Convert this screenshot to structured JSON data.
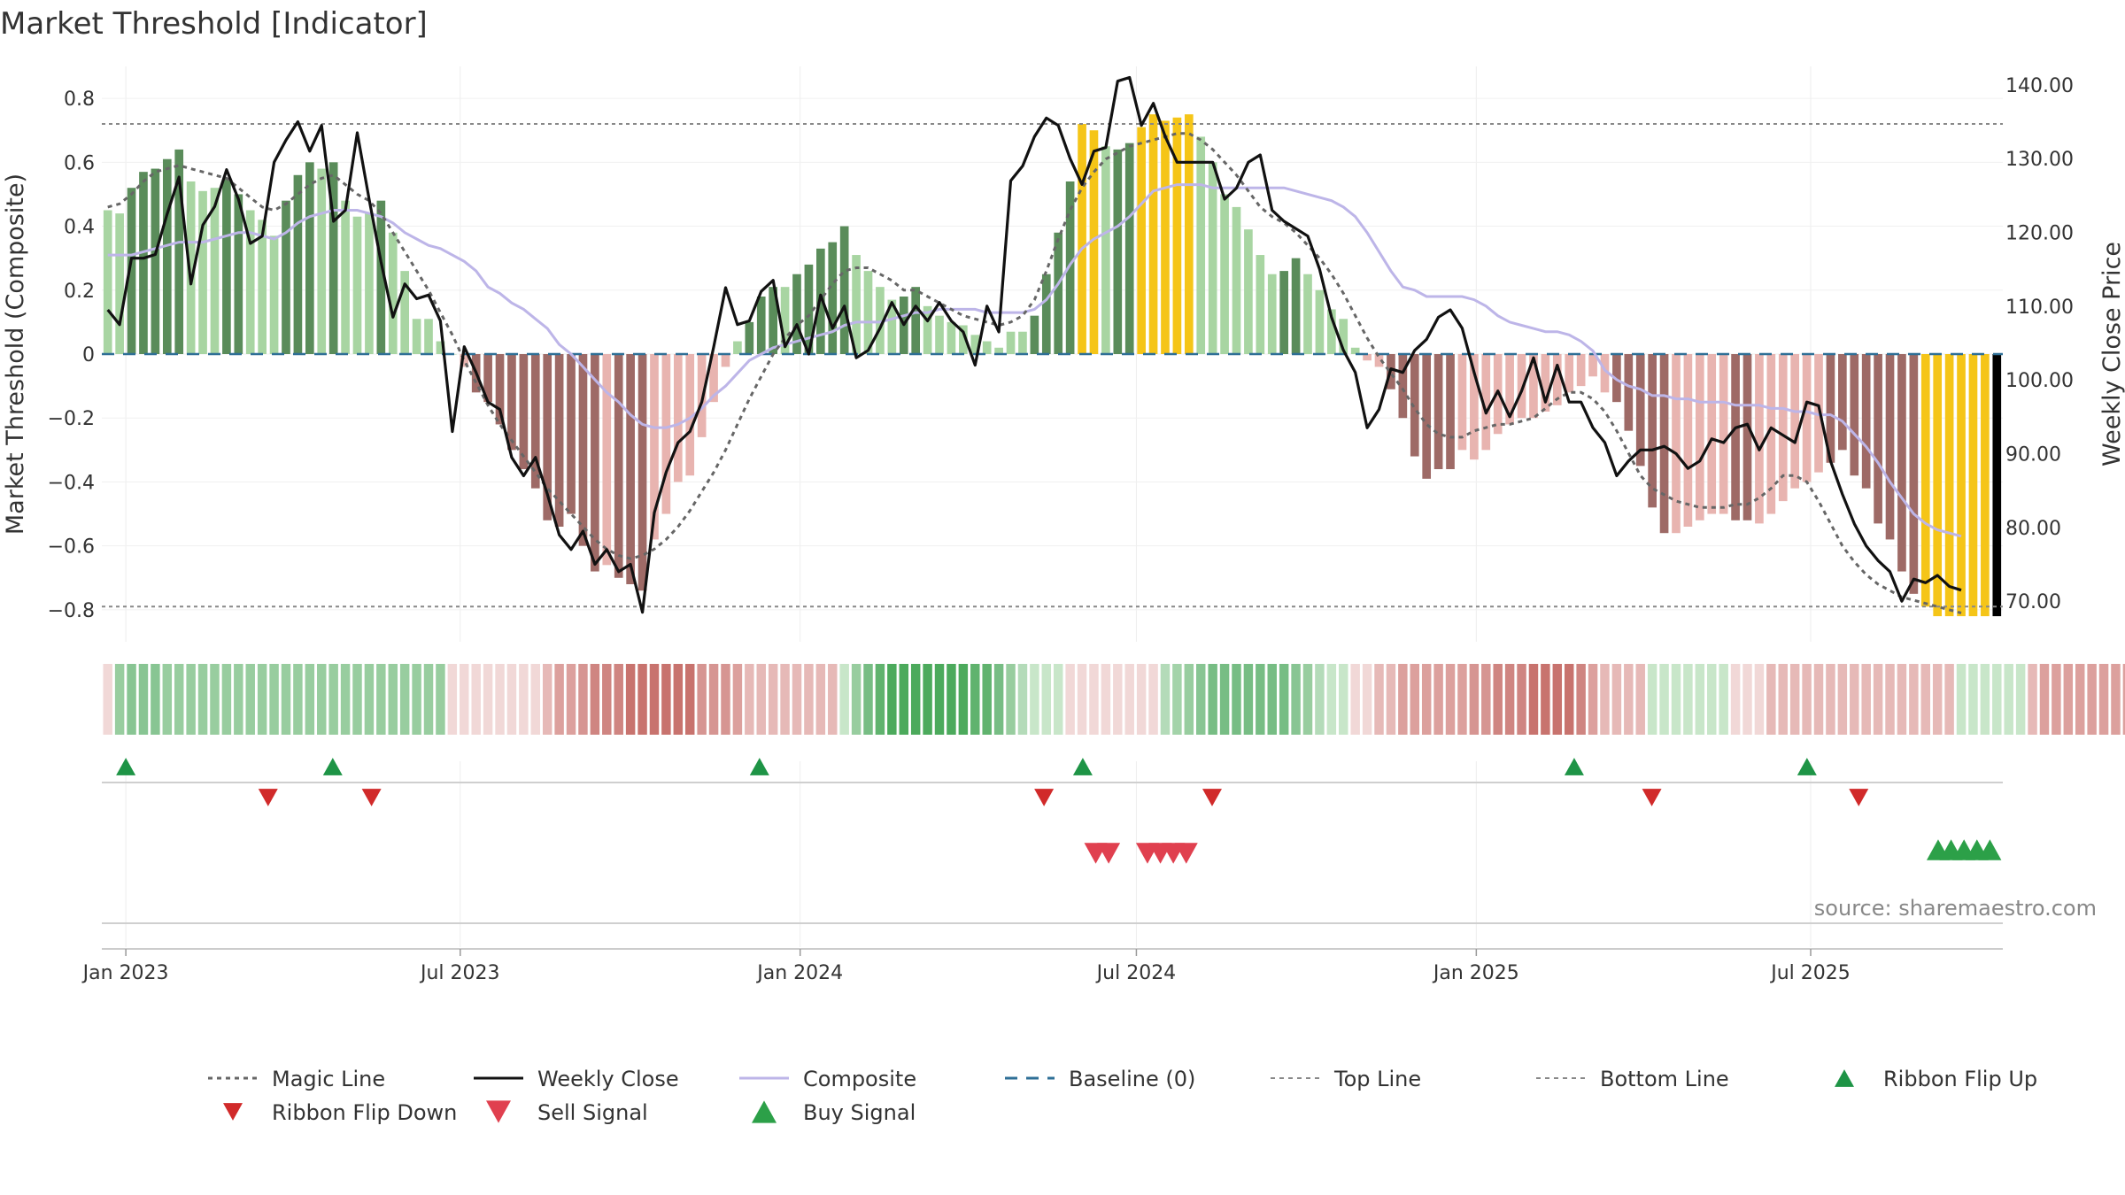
{
  "chart_data": {
    "type": "bar",
    "title": "Market Threshold [Indicator]",
    "ylabel": "Market Threshold (Composite)",
    "y2label": "Weekly Close Price",
    "ylim": [
      -0.9,
      0.9
    ],
    "y2lim": [
      64.5,
      142.5
    ],
    "y_ticks": [
      0.8,
      0.6,
      0.4,
      0.2,
      0,
      -0.2,
      -0.4,
      -0.6,
      -0.8
    ],
    "y_tick_labels": [
      "0.8",
      "0.6",
      "0.4",
      "0.2",
      "0",
      "−0.2",
      "−0.4",
      "−0.6",
      "−0.8"
    ],
    "y2_ticks": [
      140,
      130,
      120,
      110,
      100,
      90,
      80,
      70
    ],
    "y2_tick_labels": [
      "140.00",
      "130.00",
      "120.00",
      "110.00",
      "100.00",
      "90.00",
      "80.00",
      "70.00"
    ],
    "x_start": "2022-12-19",
    "x_end": "2025-10-13",
    "x_ticks": [
      "2023-01-01",
      "2023-07-01",
      "2024-01-01",
      "2024-07-01",
      "2025-01-01",
      "2025-07-01"
    ],
    "x_tick_labels": [
      "Jan 2023",
      "Jul 2023",
      "Jan 2024",
      "Jul 2024",
      "Jan 2025",
      "Jul 2025"
    ],
    "top_line": 0.72,
    "bottom_line": -0.79,
    "baseline": 0,
    "composite_bars": [
      0.45,
      0.44,
      0.52,
      0.57,
      0.58,
      0.61,
      0.64,
      0.54,
      0.51,
      0.52,
      0.55,
      0.5,
      0.45,
      0.42,
      0.37,
      0.48,
      0.56,
      0.6,
      0.58,
      0.6,
      0.48,
      0.43,
      0.44,
      0.48,
      0.38,
      0.26,
      0.11,
      0.11,
      0.04,
      0.0,
      -0.04,
      -0.12,
      -0.15,
      -0.22,
      -0.3,
      -0.36,
      -0.42,
      -0.52,
      -0.54,
      -0.5,
      -0.6,
      -0.68,
      -0.66,
      -0.7,
      -0.72,
      -0.74,
      -0.58,
      -0.5,
      -0.4,
      -0.38,
      -0.26,
      -0.15,
      -0.04,
      0.04,
      0.1,
      0.18,
      0.21,
      0.21,
      0.25,
      0.28,
      0.33,
      0.35,
      0.4,
      0.31,
      0.26,
      0.21,
      0.17,
      0.18,
      0.21,
      0.15,
      0.12,
      0.1,
      0.09,
      0.06,
      0.04,
      0.02,
      0.07,
      0.07,
      0.12,
      0.25,
      0.38,
      0.54,
      0.72,
      0.7,
      0.65,
      0.64,
      0.66,
      0.71,
      0.75,
      0.73,
      0.74,
      0.75,
      0.68,
      0.6,
      0.5,
      0.46,
      0.39,
      0.31,
      0.25,
      0.26,
      0.3,
      0.25,
      0.2,
      0.14,
      0.11,
      0.02,
      -0.02,
      -0.04,
      -0.11,
      -0.2,
      -0.32,
      -0.39,
      -0.36,
      -0.36,
      -0.3,
      -0.33,
      -0.3,
      -0.25,
      -0.22,
      -0.2,
      -0.2,
      -0.18,
      -0.16,
      -0.12,
      -0.1,
      -0.07,
      -0.12,
      -0.15,
      -0.24,
      -0.35,
      -0.48,
      -0.56,
      -0.56,
      -0.54,
      -0.52,
      -0.5,
      -0.5,
      -0.52,
      -0.52,
      -0.53,
      -0.5,
      -0.46,
      -0.42,
      -0.4,
      -0.37,
      -0.34,
      -0.3,
      -0.38,
      -0.42,
      -0.53,
      -0.58,
      -0.68,
      -0.75,
      -0.79,
      -0.82,
      -0.82,
      -0.82,
      -0.82,
      -0.82,
      -0.82
    ],
    "bar_colors": [
      "#a8d5a2",
      "#a8d5a2",
      "#5a8c5a",
      "#5a8c5a",
      "#5a8c5a",
      "#5a8c5a",
      "#5a8c5a",
      "#a8d5a2",
      "#a8d5a2",
      "#a8d5a2",
      "#5a8c5a",
      "#5a8c5a",
      "#a8d5a2",
      "#a8d5a2",
      "#a8d5a2",
      "#5a8c5a",
      "#5a8c5a",
      "#5a8c5a",
      "#a8d5a2",
      "#5a8c5a",
      "#a8d5a2",
      "#a8d5a2",
      "#a8d5a2",
      "#5a8c5a",
      "#a8d5a2",
      "#a8d5a2",
      "#a8d5a2",
      "#a8d5a2",
      "#a8d5a2",
      "#a8d5a2",
      "#e8b4b0",
      "#9e6a66",
      "#9e6a66",
      "#9e6a66",
      "#9e6a66",
      "#9e6a66",
      "#9e6a66",
      "#9e6a66",
      "#9e6a66",
      "#9e6a66",
      "#9e6a66",
      "#9e6a66",
      "#e8b4b0",
      "#9e6a66",
      "#9e6a66",
      "#9e6a66",
      "#e8b4b0",
      "#e8b4b0",
      "#e8b4b0",
      "#e8b4b0",
      "#e8b4b0",
      "#e8b4b0",
      "#e8b4b0",
      "#a8d5a2",
      "#5a8c5a",
      "#5a8c5a",
      "#5a8c5a",
      "#a8d5a2",
      "#5a8c5a",
      "#5a8c5a",
      "#5a8c5a",
      "#5a8c5a",
      "#5a8c5a",
      "#a8d5a2",
      "#a8d5a2",
      "#a8d5a2",
      "#a8d5a2",
      "#5a8c5a",
      "#5a8c5a",
      "#a8d5a2",
      "#a8d5a2",
      "#a8d5a2",
      "#a8d5a2",
      "#a8d5a2",
      "#a8d5a2",
      "#a8d5a2",
      "#a8d5a2",
      "#a8d5a2",
      "#5a8c5a",
      "#5a8c5a",
      "#5a8c5a",
      "#5a8c5a",
      "#f5c518",
      "#f5c518",
      "#a8d5a2",
      "#5a8c5a",
      "#5a8c5a",
      "#f5c518",
      "#f5c518",
      "#f5c518",
      "#f5c518",
      "#f5c518",
      "#a8d5a2",
      "#a8d5a2",
      "#a8d5a2",
      "#a8d5a2",
      "#a8d5a2",
      "#a8d5a2",
      "#a8d5a2",
      "#5a8c5a",
      "#5a8c5a",
      "#a8d5a2",
      "#a8d5a2",
      "#a8d5a2",
      "#a8d5a2",
      "#a8d5a2",
      "#e8b4b0",
      "#e8b4b0",
      "#9e6a66",
      "#9e6a66",
      "#9e6a66",
      "#9e6a66",
      "#9e6a66",
      "#9e6a66",
      "#e8b4b0",
      "#e8b4b0",
      "#e8b4b0",
      "#e8b4b0",
      "#e8b4b0",
      "#e8b4b0",
      "#e8b4b0",
      "#e8b4b0",
      "#e8b4b0",
      "#e8b4b0",
      "#e8b4b0",
      "#e8b4b0",
      "#e8b4b0",
      "#9e6a66",
      "#9e6a66",
      "#9e6a66",
      "#9e6a66",
      "#9e6a66",
      "#e8b4b0",
      "#e8b4b0",
      "#e8b4b0",
      "#e8b4b0",
      "#e8b4b0",
      "#9e6a66",
      "#9e6a66",
      "#e8b4b0",
      "#e8b4b0",
      "#e8b4b0",
      "#e8b4b0",
      "#e8b4b0",
      "#e8b4b0",
      "#9e6a66",
      "#9e6a66",
      "#9e6a66",
      "#9e6a66",
      "#9e6a66",
      "#9e6a66",
      "#9e6a66",
      "#9e6a66",
      "#f5c518",
      "#f5c518",
      "#f5c518",
      "#f5c518",
      "#f5c518",
      "#f5c518"
    ],
    "magic_line": [
      0.46,
      0.47,
      0.5,
      0.54,
      0.57,
      0.58,
      0.59,
      0.58,
      0.57,
      0.56,
      0.55,
      0.52,
      0.49,
      0.46,
      0.45,
      0.47,
      0.5,
      0.53,
      0.55,
      0.56,
      0.53,
      0.5,
      0.48,
      0.44,
      0.38,
      0.32,
      0.26,
      0.2,
      0.13,
      0.06,
      -0.02,
      -0.09,
      -0.16,
      -0.22,
      -0.27,
      -0.32,
      -0.37,
      -0.42,
      -0.46,
      -0.5,
      -0.54,
      -0.58,
      -0.61,
      -0.63,
      -0.64,
      -0.63,
      -0.61,
      -0.58,
      -0.54,
      -0.49,
      -0.43,
      -0.37,
      -0.3,
      -0.22,
      -0.14,
      -0.07,
      0.0,
      0.05,
      0.09,
      0.12,
      0.17,
      0.22,
      0.26,
      0.27,
      0.27,
      0.25,
      0.23,
      0.2,
      0.2,
      0.18,
      0.16,
      0.14,
      0.12,
      0.11,
      0.1,
      0.09,
      0.1,
      0.12,
      0.17,
      0.26,
      0.36,
      0.45,
      0.52,
      0.57,
      0.61,
      0.63,
      0.65,
      0.66,
      0.67,
      0.68,
      0.69,
      0.69,
      0.67,
      0.64,
      0.6,
      0.56,
      0.51,
      0.46,
      0.43,
      0.41,
      0.38,
      0.34,
      0.3,
      0.25,
      0.19,
      0.12,
      0.05,
      -0.01,
      -0.06,
      -0.11,
      -0.17,
      -0.22,
      -0.25,
      -0.26,
      -0.26,
      -0.24,
      -0.23,
      -0.22,
      -0.22,
      -0.21,
      -0.2,
      -0.17,
      -0.14,
      -0.12,
      -0.12,
      -0.14,
      -0.18,
      -0.24,
      -0.31,
      -0.38,
      -0.42,
      -0.44,
      -0.46,
      -0.47,
      -0.48,
      -0.48,
      -0.48,
      -0.47,
      -0.47,
      -0.45,
      -0.42,
      -0.38,
      -0.38,
      -0.4,
      -0.46,
      -0.53,
      -0.6,
      -0.65,
      -0.69,
      -0.72,
      -0.74,
      -0.76,
      -0.77,
      -0.78,
      -0.79,
      -0.8,
      -0.81
    ],
    "weekly_close": [
      109.5,
      107.5,
      116.5,
      116.5,
      117,
      122.5,
      127.5,
      113,
      121,
      123.5,
      128.5,
      124.5,
      118.5,
      119.5,
      129.5,
      132.5,
      135,
      131,
      134.5,
      121.5,
      123,
      133.5,
      124.5,
      116,
      108.5,
      113,
      111,
      111.5,
      108,
      93,
      104.5,
      101,
      97,
      96,
      89.5,
      87,
      89.5,
      84.5,
      79,
      77,
      79.5,
      75,
      77,
      74,
      75,
      68.5,
      82,
      87.5,
      91.5,
      93,
      97,
      104.5,
      112.5,
      107.5,
      108,
      112,
      113.5,
      104.5,
      107.5,
      103.5,
      111.5,
      107,
      110,
      103,
      104,
      107,
      110.5,
      107.5,
      110,
      108,
      110.5,
      108,
      106.5,
      102,
      110,
      106.5,
      127,
      129,
      133,
      135.5,
      134.5,
      130,
      126.5,
      131,
      131.5,
      140.5,
      141,
      134.5,
      137.5,
      133,
      129.5,
      129.5,
      129.5,
      129.5,
      124.5,
      126,
      129.5,
      130.5,
      123,
      121.5,
      120.5,
      119.5,
      115,
      108.5,
      104,
      101,
      93.5,
      96,
      101.5,
      101,
      104,
      105.5,
      108.5,
      109.5,
      107,
      101,
      95.5,
      98.5,
      95,
      98.5,
      103,
      97,
      102,
      97,
      97,
      93.5,
      91.5,
      87,
      89,
      90.5,
      90.5,
      91,
      90,
      88,
      89,
      92,
      91.5,
      93.5,
      94,
      90.5,
      93.5,
      92.5,
      91.5,
      97,
      96.5,
      89,
      84.5,
      80.5,
      77.5,
      75.5,
      74,
      70,
      73,
      72.5,
      73.5,
      72,
      71.5
    ],
    "composite_line": [
      0.31,
      0.31,
      0.31,
      0.32,
      0.33,
      0.34,
      0.35,
      0.35,
      0.35,
      0.36,
      0.37,
      0.38,
      0.38,
      0.37,
      0.36,
      0.38,
      0.41,
      0.43,
      0.44,
      0.45,
      0.45,
      0.45,
      0.44,
      0.43,
      0.41,
      0.38,
      0.36,
      0.34,
      0.33,
      0.31,
      0.29,
      0.26,
      0.21,
      0.19,
      0.16,
      0.14,
      0.11,
      0.08,
      0.03,
      0.0,
      -0.04,
      -0.08,
      -0.12,
      -0.15,
      -0.19,
      -0.22,
      -0.23,
      -0.23,
      -0.22,
      -0.2,
      -0.17,
      -0.13,
      -0.1,
      -0.06,
      -0.02,
      0.0,
      0.02,
      0.03,
      0.04,
      0.05,
      0.06,
      0.07,
      0.09,
      0.1,
      0.1,
      0.1,
      0.11,
      0.12,
      0.13,
      0.13,
      0.14,
      0.14,
      0.14,
      0.14,
      0.13,
      0.13,
      0.13,
      0.13,
      0.14,
      0.17,
      0.22,
      0.28,
      0.33,
      0.36,
      0.38,
      0.4,
      0.43,
      0.47,
      0.51,
      0.52,
      0.53,
      0.53,
      0.53,
      0.52,
      0.52,
      0.52,
      0.52,
      0.52,
      0.52,
      0.52,
      0.51,
      0.5,
      0.49,
      0.48,
      0.46,
      0.43,
      0.38,
      0.32,
      0.26,
      0.21,
      0.2,
      0.18,
      0.18,
      0.18,
      0.18,
      0.17,
      0.15,
      0.12,
      0.1,
      0.09,
      0.08,
      0.07,
      0.07,
      0.06,
      0.04,
      0.01,
      -0.05,
      -0.08,
      -0.1,
      -0.11,
      -0.13,
      -0.13,
      -0.14,
      -0.14,
      -0.15,
      -0.15,
      -0.15,
      -0.16,
      -0.16,
      -0.16,
      -0.17,
      -0.17,
      -0.18,
      -0.18,
      -0.19,
      -0.19,
      -0.21,
      -0.25,
      -0.29,
      -0.34,
      -0.4,
      -0.45,
      -0.5,
      -0.53,
      -0.55,
      -0.56,
      -0.57
    ],
    "ribbon_colors": [
      "#f1d8d7",
      "#98cd9f",
      "#88c593",
      "#88c593",
      "#88c593",
      "#98cd9f",
      "#98cd9f",
      "#98cd9f",
      "#98cd9f",
      "#98cd9f",
      "#98cd9f",
      "#98cd9f",
      "#98cd9f",
      "#98cd9f",
      "#98cd9f",
      "#98cd9f",
      "#98cd9f",
      "#98cd9f",
      "#98cd9f",
      "#98cd9f",
      "#98cd9f",
      "#98cd9f",
      "#98cd9f",
      "#98cd9f",
      "#98cd9f",
      "#98cd9f",
      "#98cd9f",
      "#98cd9f",
      "#98cd9f",
      "#f1d8d7",
      "#f1d8d7",
      "#f1d8d7",
      "#f1d8d7",
      "#f1d8d7",
      "#f1d8d7",
      "#f1d8d7",
      "#f1d8d7",
      "#e6b9b7",
      "#dca09d",
      "#dca09d",
      "#d69592",
      "#cf8581",
      "#cf8581",
      "#cf8581",
      "#c8736e",
      "#c8736e",
      "#c8736e",
      "#c8736e",
      "#c8736e",
      "#c8736e",
      "#d69592",
      "#d69592",
      "#d69592",
      "#dca09d",
      "#e6b9b7",
      "#e6b9b7",
      "#e6b9b7",
      "#e6b9b7",
      "#e6b9b7",
      "#e6b9b7",
      "#e6b9b7",
      "#e6b9b7",
      "#c8e6c9",
      "#98cd9f",
      "#77bd84",
      "#60b36e",
      "#4caa5c",
      "#4caa5c",
      "#4caa5c",
      "#4caa5c",
      "#4caa5c",
      "#4caa5c",
      "#4caa5c",
      "#60b36e",
      "#60b36e",
      "#77bd84",
      "#98cd9f",
      "#b4dbb9",
      "#c8e6c9",
      "#c8e6c9",
      "#c8e6c9",
      "#f1d8d7",
      "#f1d8d7",
      "#f1d8d7",
      "#f1d8d7",
      "#f1d8d7",
      "#f1d8d7",
      "#f1d8d7",
      "#f1d8d7",
      "#b4dbb9",
      "#a3d3a9",
      "#98cd9f",
      "#88c593",
      "#77bd84",
      "#77bd84",
      "#77bd84",
      "#77bd84",
      "#77bd84",
      "#77bd84",
      "#77bd84",
      "#88c593",
      "#98cd9f",
      "#b4dbb9",
      "#c8e6c9",
      "#c8e6c9",
      "#f1d8d7",
      "#f1d8d7",
      "#e6b9b7",
      "#e6b9b7",
      "#dca09d",
      "#dca09d",
      "#dca09d",
      "#dca09d",
      "#dca09d",
      "#dca09d",
      "#d69592",
      "#d69592",
      "#cf8581",
      "#cf8581",
      "#cf8581",
      "#c8736e",
      "#c8736e",
      "#c8736e",
      "#c8736e",
      "#cf8581",
      "#dca09d",
      "#e6b9b7",
      "#e6b9b7",
      "#e6b9b7",
      "#e6b9b7",
      "#c8e6c9",
      "#c8e6c9",
      "#c8e6c9",
      "#c8e6c9",
      "#c8e6c9",
      "#c8e6c9",
      "#c8e6c9",
      "#f1d8d7",
      "#f1d8d7",
      "#f1d8d7",
      "#e6b9b7",
      "#e6b9b7",
      "#e6b9b7",
      "#e6b9b7",
      "#e6b9b7",
      "#e6b9b7",
      "#e6b9b7",
      "#e6b9b7",
      "#e6b9b7",
      "#e6b9b7",
      "#e6b9b7",
      "#e6b9b7",
      "#e6b9b7",
      "#e6b9b7",
      "#e6b9b7",
      "#e6b9b7",
      "#c8e6c9",
      "#c8e6c9",
      "#c8e6c9",
      "#c8e6c9",
      "#c8e6c9",
      "#c8e6c9",
      "#e6b9b7",
      "#dca09d",
      "#dca09d",
      "#dca09d",
      "#dca09d",
      "#dca09d",
      "#dca09d",
      "#dca09d",
      "#dca09d",
      "#dca09d",
      "#dca09d"
    ],
    "ribbon_flip_up_dates": [
      "2023-01-01",
      "2023-04-23",
      "2023-12-10",
      "2024-06-02",
      "2025-02-23",
      "2025-06-29"
    ],
    "ribbon_flip_down_dates": [
      "2023-03-19",
      "2023-05-14",
      "2024-05-12",
      "2024-08-11",
      "2025-04-06",
      "2025-07-27"
    ],
    "sell_signal_dates": [
      "2024-06-09",
      "2024-06-16",
      "2024-07-07",
      "2024-07-14",
      "2024-07-21",
      "2024-07-28"
    ],
    "buy_signal_dates": [
      "2025-09-08",
      "2025-09-15",
      "2025-09-22",
      "2025-09-29",
      "2025-10-06"
    ],
    "colors": {
      "bull_strong": "#5a8c5a",
      "bull_weak": "#a8d5a2",
      "bear_strong": "#9e6a66",
      "bear_weak": "#e8b4b0",
      "extreme": "#f5c518",
      "magic_line": "#666666",
      "weekly_close": "#111111",
      "composite": "#bdb5e8",
      "baseline": "#2e6f96",
      "threshold_lines": "#888888",
      "ribbon_flip_up": "#1e9446",
      "ribbon_flip_down": "#d12a2a",
      "sell_signal": "#e0404f",
      "buy_signal": "#2ca048"
    },
    "source": "source: sharemaestro.com",
    "legend": [
      {
        "label": "Magic Line",
        "style": "dotted-line",
        "color": "#666666"
      },
      {
        "label": "Weekly Close",
        "style": "solid-line",
        "color": "#111111"
      },
      {
        "label": "Composite",
        "style": "solid-line",
        "color": "#bdb5e8"
      },
      {
        "label": "Baseline (0)",
        "style": "dashed-line",
        "color": "#2e6f96"
      },
      {
        "label": "Top Line",
        "style": "dotted-line",
        "color": "#888888"
      },
      {
        "label": "Bottom Line",
        "style": "dotted-line",
        "color": "#888888"
      },
      {
        "label": "Ribbon Flip Up",
        "style": "triangle-up",
        "color": "#1e9446"
      },
      {
        "label": "Ribbon Flip Down",
        "style": "triangle-down",
        "color": "#d12a2a"
      },
      {
        "label": "Sell Signal",
        "style": "triangle-down-large",
        "color": "#e0404f"
      },
      {
        "label": "Buy Signal",
        "style": "triangle-up-large",
        "color": "#2ca048"
      }
    ],
    "legend_position": "bottom",
    "grid": true
  }
}
